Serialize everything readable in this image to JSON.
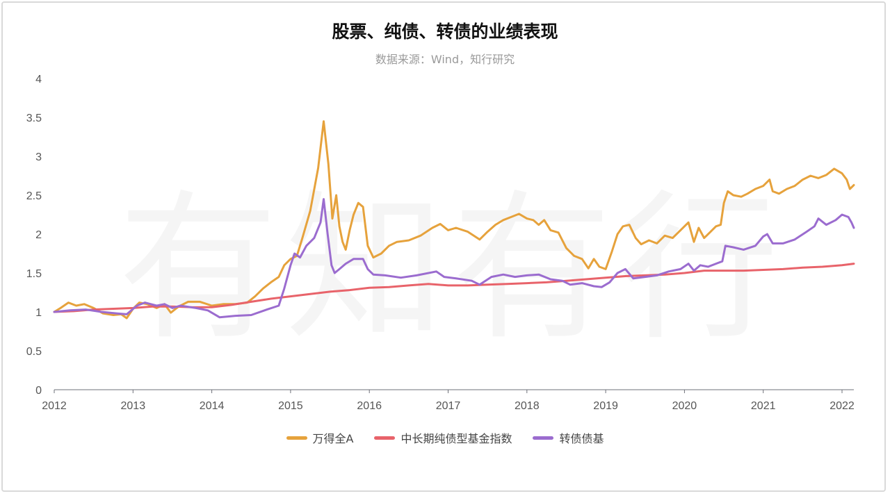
{
  "chart_data": {
    "type": "line",
    "title": "股票、纯债、转债的业绩表现",
    "subtitle": "数据来源：Wind，知行研究",
    "watermark": "有知有行",
    "xlabel": "",
    "ylabel": "",
    "xlim": [
      2012,
      2022.15
    ],
    "ylim": [
      0,
      4
    ],
    "x_ticks": [
      "2012",
      "2013",
      "2014",
      "2015",
      "2016",
      "2017",
      "2018",
      "2019",
      "2020",
      "2021",
      "2022"
    ],
    "y_ticks": [
      "0",
      "0.5",
      "1",
      "1.5",
      "2",
      "2.5",
      "3",
      "3.5",
      "4"
    ],
    "legend_position": "bottom",
    "grid": false,
    "series": [
      {
        "name": "万得全A",
        "color": "#e6a23c",
        "points": [
          [
            2012.0,
            1.0
          ],
          [
            2012.08,
            1.05
          ],
          [
            2012.18,
            1.12
          ],
          [
            2012.28,
            1.08
          ],
          [
            2012.38,
            1.1
          ],
          [
            2012.5,
            1.05
          ],
          [
            2012.62,
            0.98
          ],
          [
            2012.75,
            0.96
          ],
          [
            2012.85,
            0.97
          ],
          [
            2012.92,
            0.92
          ],
          [
            2013.0,
            1.04
          ],
          [
            2013.08,
            1.12
          ],
          [
            2013.18,
            1.1
          ],
          [
            2013.3,
            1.05
          ],
          [
            2013.4,
            1.1
          ],
          [
            2013.48,
            0.99
          ],
          [
            2013.58,
            1.07
          ],
          [
            2013.7,
            1.13
          ],
          [
            2013.85,
            1.13
          ],
          [
            2014.0,
            1.08
          ],
          [
            2014.15,
            1.1
          ],
          [
            2014.3,
            1.1
          ],
          [
            2014.45,
            1.12
          ],
          [
            2014.55,
            1.2
          ],
          [
            2014.65,
            1.3
          ],
          [
            2014.75,
            1.38
          ],
          [
            2014.85,
            1.45
          ],
          [
            2014.92,
            1.6
          ],
          [
            2015.0,
            1.68
          ],
          [
            2015.08,
            1.72
          ],
          [
            2015.15,
            1.95
          ],
          [
            2015.25,
            2.3
          ],
          [
            2015.35,
            2.85
          ],
          [
            2015.42,
            3.45
          ],
          [
            2015.48,
            2.9
          ],
          [
            2015.53,
            2.2
          ],
          [
            2015.58,
            2.5
          ],
          [
            2015.62,
            2.1
          ],
          [
            2015.66,
            1.9
          ],
          [
            2015.7,
            1.8
          ],
          [
            2015.75,
            2.05
          ],
          [
            2015.8,
            2.25
          ],
          [
            2015.86,
            2.4
          ],
          [
            2015.92,
            2.35
          ],
          [
            2015.98,
            1.85
          ],
          [
            2016.05,
            1.7
          ],
          [
            2016.15,
            1.75
          ],
          [
            2016.25,
            1.85
          ],
          [
            2016.35,
            1.9
          ],
          [
            2016.5,
            1.92
          ],
          [
            2016.65,
            1.98
          ],
          [
            2016.8,
            2.08
          ],
          [
            2016.9,
            2.13
          ],
          [
            2017.0,
            2.05
          ],
          [
            2017.1,
            2.08
          ],
          [
            2017.25,
            2.03
          ],
          [
            2017.4,
            1.93
          ],
          [
            2017.5,
            2.03
          ],
          [
            2017.6,
            2.12
          ],
          [
            2017.7,
            2.18
          ],
          [
            2017.8,
            2.22
          ],
          [
            2017.9,
            2.26
          ],
          [
            2018.0,
            2.2
          ],
          [
            2018.08,
            2.18
          ],
          [
            2018.15,
            2.12
          ],
          [
            2018.22,
            2.18
          ],
          [
            2018.3,
            2.05
          ],
          [
            2018.4,
            2.02
          ],
          [
            2018.5,
            1.82
          ],
          [
            2018.6,
            1.72
          ],
          [
            2018.7,
            1.68
          ],
          [
            2018.78,
            1.56
          ],
          [
            2018.85,
            1.68
          ],
          [
            2018.92,
            1.58
          ],
          [
            2019.0,
            1.55
          ],
          [
            2019.08,
            1.78
          ],
          [
            2019.15,
            2.0
          ],
          [
            2019.22,
            2.1
          ],
          [
            2019.3,
            2.12
          ],
          [
            2019.38,
            1.95
          ],
          [
            2019.45,
            1.87
          ],
          [
            2019.55,
            1.92
          ],
          [
            2019.65,
            1.88
          ],
          [
            2019.75,
            1.98
          ],
          [
            2019.85,
            1.95
          ],
          [
            2019.95,
            2.05
          ],
          [
            2020.05,
            2.15
          ],
          [
            2020.12,
            1.9
          ],
          [
            2020.18,
            2.08
          ],
          [
            2020.25,
            1.95
          ],
          [
            2020.32,
            2.02
          ],
          [
            2020.4,
            2.1
          ],
          [
            2020.46,
            2.12
          ],
          [
            2020.5,
            2.4
          ],
          [
            2020.55,
            2.55
          ],
          [
            2020.62,
            2.5
          ],
          [
            2020.72,
            2.48
          ],
          [
            2020.8,
            2.52
          ],
          [
            2020.9,
            2.58
          ],
          [
            2021.0,
            2.62
          ],
          [
            2021.08,
            2.7
          ],
          [
            2021.12,
            2.55
          ],
          [
            2021.2,
            2.52
          ],
          [
            2021.3,
            2.58
          ],
          [
            2021.4,
            2.62
          ],
          [
            2021.5,
            2.7
          ],
          [
            2021.6,
            2.75
          ],
          [
            2021.7,
            2.72
          ],
          [
            2021.8,
            2.76
          ],
          [
            2021.9,
            2.84
          ],
          [
            2022.0,
            2.78
          ],
          [
            2022.06,
            2.7
          ],
          [
            2022.1,
            2.58
          ],
          [
            2022.15,
            2.63
          ]
        ]
      },
      {
        "name": "中长期纯债型基金指数",
        "color": "#e8636a",
        "points": [
          [
            2012.0,
            1.0
          ],
          [
            2012.25,
            1.01
          ],
          [
            2012.5,
            1.03
          ],
          [
            2012.75,
            1.04
          ],
          [
            2013.0,
            1.05
          ],
          [
            2013.25,
            1.07
          ],
          [
            2013.5,
            1.07
          ],
          [
            2013.75,
            1.06
          ],
          [
            2014.0,
            1.06
          ],
          [
            2014.25,
            1.09
          ],
          [
            2014.5,
            1.13
          ],
          [
            2014.75,
            1.17
          ],
          [
            2015.0,
            1.2
          ],
          [
            2015.25,
            1.23
          ],
          [
            2015.5,
            1.26
          ],
          [
            2015.75,
            1.28
          ],
          [
            2016.0,
            1.31
          ],
          [
            2016.25,
            1.32
          ],
          [
            2016.5,
            1.34
          ],
          [
            2016.75,
            1.36
          ],
          [
            2017.0,
            1.34
          ],
          [
            2017.25,
            1.34
          ],
          [
            2017.5,
            1.35
          ],
          [
            2017.75,
            1.36
          ],
          [
            2018.0,
            1.37
          ],
          [
            2018.25,
            1.38
          ],
          [
            2018.5,
            1.4
          ],
          [
            2018.75,
            1.42
          ],
          [
            2019.0,
            1.44
          ],
          [
            2019.25,
            1.46
          ],
          [
            2019.5,
            1.47
          ],
          [
            2019.75,
            1.48
          ],
          [
            2020.0,
            1.5
          ],
          [
            2020.25,
            1.53
          ],
          [
            2020.5,
            1.53
          ],
          [
            2020.75,
            1.53
          ],
          [
            2021.0,
            1.54
          ],
          [
            2021.25,
            1.55
          ],
          [
            2021.5,
            1.57
          ],
          [
            2021.75,
            1.58
          ],
          [
            2022.0,
            1.6
          ],
          [
            2022.15,
            1.62
          ]
        ]
      },
      {
        "name": "转债债基",
        "color": "#9b6ccf",
        "points": [
          [
            2012.0,
            1.0
          ],
          [
            2012.2,
            1.02
          ],
          [
            2012.4,
            1.03
          ],
          [
            2012.6,
            1.0
          ],
          [
            2012.8,
            0.98
          ],
          [
            2012.92,
            0.97
          ],
          [
            2013.05,
            1.08
          ],
          [
            2013.15,
            1.12
          ],
          [
            2013.3,
            1.08
          ],
          [
            2013.4,
            1.1
          ],
          [
            2013.5,
            1.05
          ],
          [
            2013.6,
            1.08
          ],
          [
            2013.8,
            1.05
          ],
          [
            2013.95,
            1.02
          ],
          [
            2014.1,
            0.93
          ],
          [
            2014.3,
            0.95
          ],
          [
            2014.5,
            0.96
          ],
          [
            2014.7,
            1.03
          ],
          [
            2014.85,
            1.08
          ],
          [
            2014.92,
            1.3
          ],
          [
            2015.0,
            1.6
          ],
          [
            2015.05,
            1.75
          ],
          [
            2015.12,
            1.7
          ],
          [
            2015.2,
            1.85
          ],
          [
            2015.3,
            1.95
          ],
          [
            2015.38,
            2.15
          ],
          [
            2015.42,
            2.45
          ],
          [
            2015.47,
            2.0
          ],
          [
            2015.52,
            1.6
          ],
          [
            2015.56,
            1.5
          ],
          [
            2015.62,
            1.55
          ],
          [
            2015.7,
            1.62
          ],
          [
            2015.8,
            1.68
          ],
          [
            2015.92,
            1.68
          ],
          [
            2015.98,
            1.55
          ],
          [
            2016.05,
            1.48
          ],
          [
            2016.2,
            1.47
          ],
          [
            2016.4,
            1.44
          ],
          [
            2016.6,
            1.47
          ],
          [
            2016.85,
            1.52
          ],
          [
            2016.95,
            1.45
          ],
          [
            2017.1,
            1.43
          ],
          [
            2017.3,
            1.4
          ],
          [
            2017.4,
            1.35
          ],
          [
            2017.55,
            1.45
          ],
          [
            2017.7,
            1.48
          ],
          [
            2017.85,
            1.45
          ],
          [
            2018.0,
            1.47
          ],
          [
            2018.15,
            1.48
          ],
          [
            2018.3,
            1.42
          ],
          [
            2018.45,
            1.4
          ],
          [
            2018.55,
            1.35
          ],
          [
            2018.7,
            1.37
          ],
          [
            2018.85,
            1.33
          ],
          [
            2018.95,
            1.32
          ],
          [
            2019.05,
            1.38
          ],
          [
            2019.15,
            1.5
          ],
          [
            2019.25,
            1.55
          ],
          [
            2019.35,
            1.43
          ],
          [
            2019.5,
            1.45
          ],
          [
            2019.65,
            1.47
          ],
          [
            2019.8,
            1.52
          ],
          [
            2019.95,
            1.55
          ],
          [
            2020.05,
            1.62
          ],
          [
            2020.12,
            1.53
          ],
          [
            2020.2,
            1.6
          ],
          [
            2020.3,
            1.58
          ],
          [
            2020.4,
            1.62
          ],
          [
            2020.48,
            1.65
          ],
          [
            2020.52,
            1.85
          ],
          [
            2020.62,
            1.83
          ],
          [
            2020.75,
            1.8
          ],
          [
            2020.9,
            1.85
          ],
          [
            2021.0,
            1.97
          ],
          [
            2021.05,
            2.0
          ],
          [
            2021.12,
            1.88
          ],
          [
            2021.25,
            1.88
          ],
          [
            2021.4,
            1.93
          ],
          [
            2021.55,
            2.03
          ],
          [
            2021.65,
            2.1
          ],
          [
            2021.7,
            2.2
          ],
          [
            2021.8,
            2.12
          ],
          [
            2021.92,
            2.18
          ],
          [
            2022.0,
            2.25
          ],
          [
            2022.08,
            2.22
          ],
          [
            2022.12,
            2.15
          ],
          [
            2022.15,
            2.08
          ]
        ]
      }
    ]
  }
}
